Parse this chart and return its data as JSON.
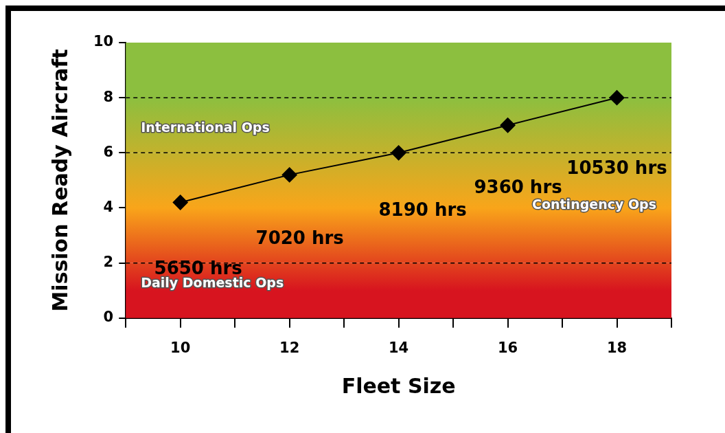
{
  "chart_data": {
    "type": "line",
    "xlabel": "Fleet Size",
    "ylabel": "Mission Ready Aircraft",
    "x": [
      10,
      12,
      14,
      16,
      18
    ],
    "series": [
      {
        "color": "#000000",
        "values": [
          4.2,
          5.2,
          6,
          7,
          8
        ]
      }
    ],
    "annotations": [
      "5650 hrs",
      "7020 hrs",
      "8190 hrs",
      "9360 hrs",
      "10530 hrs"
    ],
    "xlim": [
      9,
      19
    ],
    "xticks": [
      {
        "value": 9,
        "label": null
      },
      10,
      {
        "value": 11,
        "label": null
      },
      12,
      {
        "value": 13,
        "label": null
      },
      14,
      {
        "value": 15,
        "label": null
      },
      16,
      {
        "value": 17,
        "label": null
      },
      18,
      {
        "value": 19,
        "label": null
      }
    ],
    "ylim": [
      0,
      10
    ],
    "yticks": [
      0,
      2,
      4,
      6,
      8,
      10
    ],
    "grid": false,
    "legend": false,
    "marker": "diamond",
    "line_style": "solid",
    "ref_lines": [
      {
        "axis": "y",
        "value": 2,
        "line_style": "dashed",
        "color": "#000000"
      },
      {
        "axis": "y",
        "value": 6,
        "line_style": "dashed",
        "color": "#000000"
      },
      {
        "axis": "y",
        "value": 8,
        "line_style": "dashed",
        "color": "#000000"
      }
    ],
    "bands": [
      {
        "axis": "y",
        "from": 0,
        "to": 2,
        "label": "Daily Domestic Ops",
        "color": "#d7141f"
      },
      {
        "axis": "y",
        "from": 2,
        "to": 6,
        "label": "Contingency Ops",
        "color": "#f9a51a"
      },
      {
        "axis": "y",
        "from": 6,
        "to": 10,
        "label": "International Ops",
        "color": "#8cbf3f"
      }
    ]
  }
}
